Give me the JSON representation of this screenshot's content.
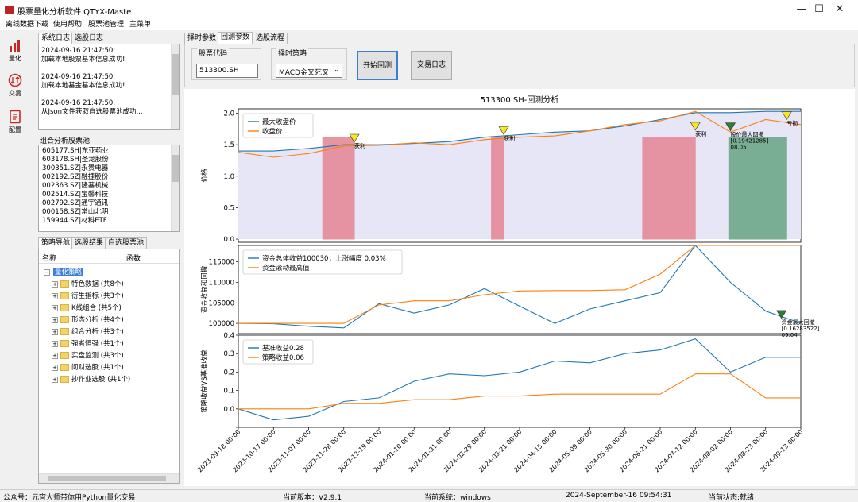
{
  "window": {
    "title": "股票量化分析软件 QTYX-Maste",
    "minimize": "—",
    "maximize": "☐",
    "close": "✕"
  },
  "menu": [
    "离线数据下载",
    "使用帮助",
    "股票池管理",
    "主菜单"
  ],
  "nav": [
    {
      "label": "量化",
      "icon": "bar-chart-icon"
    },
    {
      "label": "交易",
      "icon": "trade-cycle-icon"
    },
    {
      "label": "配置",
      "icon": "document-config-icon"
    }
  ],
  "log_tabs": [
    "系统日志",
    "选股日志"
  ],
  "log_lines": [
    "2024-09-16 21:47:50:",
    "加载本地股票基本信息成功!",
    "",
    "2024-09-16 21:47:50:",
    "加载本地基金基本信息成功!",
    "",
    "2024-09-16 21:47:50:",
    "从Json文件获取自选股票池成功..."
  ],
  "pool_title": "组合分析股票池",
  "pool": [
    "605177.SH|东亚药业",
    "603178.SH|圣龙股份",
    "300351.SZ|永贵电器",
    "002192.SZ|融捷股份",
    "002363.SZ|隆基机械",
    "002514.SZ|宝馨科技",
    "002792.SZ|通宇通讯",
    "000158.SZ|常山北明",
    "159944.SZ|材料ETF"
  ],
  "strategy_tabs": [
    "策略导航",
    "选股结果",
    "自选股票池"
  ],
  "tree_headers": [
    "名称",
    "函数"
  ],
  "tree_root": "量化策略",
  "tree_items": [
    "特色数据 (共8个)",
    "衍生指标 (共3个)",
    "K线组合 (共5个)",
    "形态分析 (共4个)",
    "组合分析 (共3个)",
    "强者恒强 (共1个)",
    "实盘监测 (共3个)",
    "问财选股 (共1个)",
    "抄作业选股 (共1个)"
  ],
  "right_tabs": [
    "择时参数",
    "回测参数",
    "选股流程"
  ],
  "form": {
    "code_label": "股票代码",
    "code_value": "513300.SH",
    "strategy_label": "择时策略",
    "strategy_value": "MACD金叉死叉",
    "start_button": "开始回测",
    "log_button": "交易日志"
  },
  "chart_data": [
    {
      "type": "area",
      "title": "513300.SH-回测分析",
      "ylabel": "价格",
      "ylim": [
        -0.05,
        2.07
      ],
      "x": [
        "2023-09-18",
        "2023-10-17",
        "2023-11-07",
        "2023-11-28",
        "2023-12-19",
        "2024-01-10",
        "2024-01-31",
        "2024-02-29",
        "2024-03-21",
        "2024-04-15",
        "2024-05-09",
        "2024-05-30",
        "2024-06-21",
        "2024-07-12",
        "2024-08-02",
        "2024-08-23",
        "2024-09-13"
      ],
      "series": [
        {
          "name": "最大收盘价",
          "values": [
            1.4,
            1.4,
            1.44,
            1.5,
            1.5,
            1.52,
            1.55,
            1.62,
            1.66,
            1.7,
            1.72,
            1.8,
            1.9,
            2.01,
            2.01,
            2.03,
            2.03
          ]
        },
        {
          "name": "收盘价",
          "values": [
            1.38,
            1.3,
            1.36,
            1.48,
            1.49,
            1.53,
            1.5,
            1.58,
            1.62,
            1.64,
            1.72,
            1.82,
            1.88,
            2.03,
            1.7,
            1.9,
            1.82
          ]
        }
      ],
      "annotations": [
        "获利",
        "获利",
        "获利",
        "获利",
        "股价最大回撤\n[0.19421285]\n08.05",
        "亏损"
      ]
    },
    {
      "type": "line",
      "ylabel": "资金收益和回撤",
      "ylim": [
        97500,
        119000
      ],
      "yticks": [
        100000,
        105000,
        110000,
        115000
      ],
      "series": [
        {
          "name": "资金总体收益100030；上涨幅度 0.03%",
          "values": [
            100000,
            99900,
            99300,
            98900,
            104800,
            102500,
            104500,
            108500,
            104200,
            100000,
            103500,
            105500,
            107500,
            119000,
            110000,
            103000,
            100030
          ]
        },
        {
          "name": "资金滚动最高值",
          "values": [
            100000,
            100000,
            100000,
            100000,
            104500,
            105500,
            105500,
            107000,
            107900,
            108000,
            108000,
            108200,
            112000,
            119000,
            119000,
            119000,
            119000
          ]
        }
      ],
      "annotations": [
        "资金最大回撤\n[0.16283522]\n09.04"
      ]
    },
    {
      "type": "line",
      "ylabel": "策略收益VS基准收益",
      "ylim": [
        -0.1,
        0.4
      ],
      "series": [
        {
          "name": "基准收益0.28",
          "values": [
            0,
            -0.06,
            -0.04,
            0.04,
            0.06,
            0.15,
            0.19,
            0.18,
            0.2,
            0.26,
            0.25,
            0.3,
            0.32,
            0.38,
            0.2,
            0.28,
            0.28
          ]
        },
        {
          "name": "策略收益0.06",
          "values": [
            0,
            0,
            0,
            0.03,
            0.03,
            0.05,
            0.05,
            0.07,
            0.07,
            0.08,
            0.08,
            0.08,
            0.08,
            0.19,
            0.19,
            0.06,
            0.06
          ]
        }
      ]
    }
  ],
  "status": [
    "公众号：元宵大师带你用Python量化交易",
    "当前版本：V2.9.1",
    "当前系统：windows",
    "2024-September-16 09:54:31",
    "当前状态:就绪"
  ]
}
